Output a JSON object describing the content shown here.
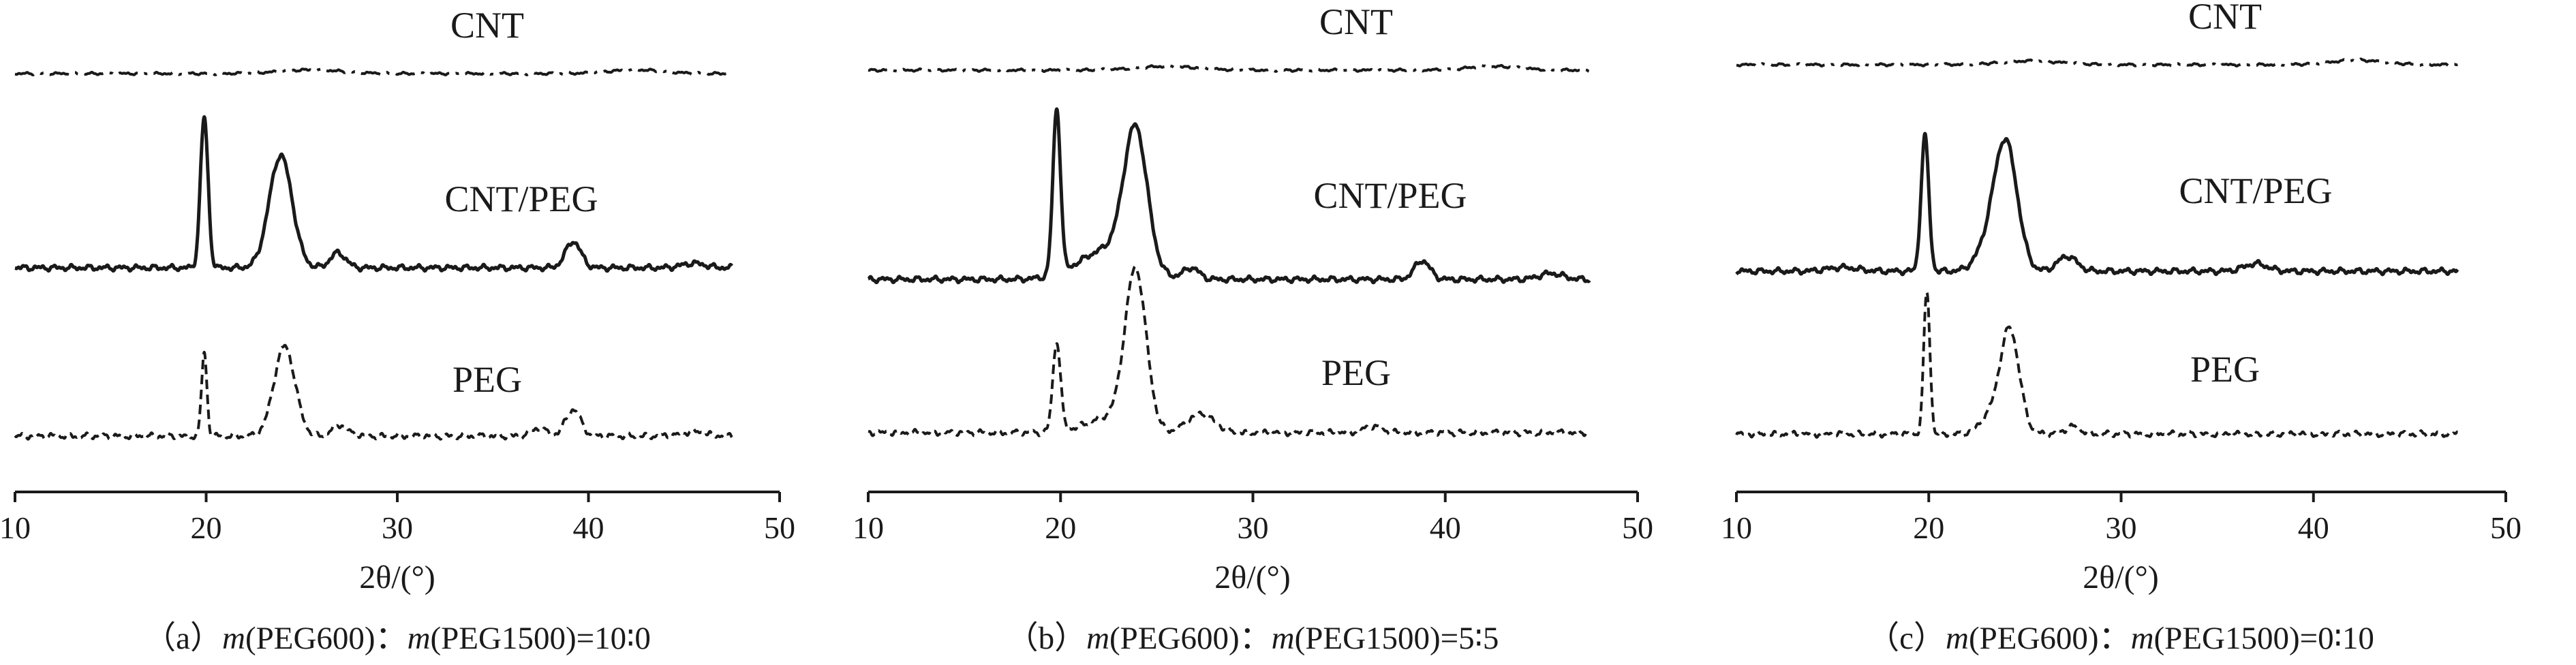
{
  "chart_data": [
    {
      "type": "line",
      "panel": "a",
      "xlabel": "2θ/(°)",
      "xlim": [
        10,
        50
      ],
      "xticks": [
        10,
        20,
        30,
        40,
        50
      ],
      "caption": {
        "prefix": "（a）",
        "m1": "m",
        "part1": "(PEG600)：",
        "m2": "m",
        "part2": "(PEG1500)=10∶0"
      },
      "series": [
        {
          "name": "CNT",
          "style": "dashdot",
          "x_range": [
            10,
            47.5
          ],
          "peaks": [
            {
              "x": 25.5,
              "h": 0.5,
              "w": 1.6
            },
            {
              "x": 42.5,
              "h": 0.5,
              "w": 1.4
            }
          ]
        },
        {
          "name": "CNT/PEG",
          "style": "solid",
          "x_range": [
            10,
            47.5
          ],
          "peaks": [
            {
              "x": 19.9,
              "h": 20,
              "w": 0.2
            },
            {
              "x": 23.9,
              "h": 15,
              "w": 0.6
            },
            {
              "x": 26.9,
              "h": 2,
              "w": 0.4
            },
            {
              "x": 39.2,
              "h": 3.5,
              "w": 0.4
            },
            {
              "x": 45.5,
              "h": 0.6,
              "w": 0.6
            }
          ]
        },
        {
          "name": "PEG",
          "style": "dashed",
          "x_range": [
            10,
            47.5
          ],
          "peaks": [
            {
              "x": 19.9,
              "h": 11,
              "w": 0.14
            },
            {
              "x": 24.1,
              "h": 12,
              "w": 0.55
            },
            {
              "x": 27.0,
              "h": 1.5,
              "w": 0.4
            },
            {
              "x": 37.4,
              "h": 1,
              "w": 0.4
            },
            {
              "x": 39.2,
              "h": 3.5,
              "w": 0.4
            },
            {
              "x": 45.5,
              "h": 0.6,
              "w": 0.6
            }
          ]
        }
      ]
    },
    {
      "type": "line",
      "panel": "b",
      "xlabel": "2θ/(°)",
      "xlim": [
        10,
        50
      ],
      "xticks": [
        10,
        20,
        30,
        40,
        50
      ],
      "caption": {
        "prefix": "（b）",
        "m1": "m",
        "part1": "(PEG600)：",
        "m2": "m",
        "part2": "(PEG1500)=5∶5"
      },
      "series": [
        {
          "name": "CNT",
          "style": "dashdot",
          "x_range": [
            10,
            47.5
          ],
          "peaks": [
            {
              "x": 25.5,
              "h": 0.5,
              "w": 1.6
            },
            {
              "x": 42.5,
              "h": 0.5,
              "w": 1.4
            }
          ]
        },
        {
          "name": "CNT/PEG",
          "style": "solid",
          "x_range": [
            10,
            47.5
          ],
          "peaks": [
            {
              "x": 19.8,
              "h": 22,
              "w": 0.2
            },
            {
              "x": 23.9,
              "h": 18,
              "w": 0.6
            },
            {
              "x": 22.5,
              "h": 4,
              "w": 1.5
            },
            {
              "x": 26.8,
              "h": 1.5,
              "w": 0.4
            },
            {
              "x": 38.8,
              "h": 2.5,
              "w": 0.4
            },
            {
              "x": 45.5,
              "h": 0.8,
              "w": 0.6
            }
          ]
        },
        {
          "name": "PEG",
          "style": "dashed",
          "x_range": [
            10,
            47.5
          ],
          "peaks": [
            {
              "x": 19.8,
              "h": 12,
              "w": 0.2
            },
            {
              "x": 23.9,
              "h": 21,
              "w": 0.55
            },
            {
              "x": 22.5,
              "h": 2,
              "w": 1.2
            },
            {
              "x": 27.3,
              "h": 2.5,
              "w": 0.7
            },
            {
              "x": 36.2,
              "h": 0.8,
              "w": 0.5
            }
          ]
        }
      ]
    },
    {
      "type": "line",
      "panel": "c",
      "xlabel": "2θ/(°)",
      "xlim": [
        10,
        50
      ],
      "xticks": [
        10,
        20,
        30,
        40,
        50
      ],
      "caption": {
        "prefix": "（c）",
        "m1": "m",
        "part1": "(PEG600)：",
        "m2": "m",
        "part2": "(PEG1500)=0∶10"
      },
      "series": [
        {
          "name": "CNT",
          "style": "dashdot",
          "x_range": [
            10,
            47.5
          ],
          "peaks": [
            {
              "x": 25.3,
              "h": 0.5,
              "w": 1.6
            },
            {
              "x": 42.3,
              "h": 0.6,
              "w": 1.4
            }
          ]
        },
        {
          "name": "CNT/PEG",
          "style": "solid",
          "x_range": [
            10,
            47.5
          ],
          "peaks": [
            {
              "x": 19.8,
              "h": 18,
              "w": 0.2
            },
            {
              "x": 24.0,
              "h": 17,
              "w": 0.6
            },
            {
              "x": 23.0,
              "h": 2.5,
              "w": 0.6
            },
            {
              "x": 27.2,
              "h": 2,
              "w": 0.5
            },
            {
              "x": 37.0,
              "h": 1,
              "w": 0.6
            },
            {
              "x": 15.5,
              "h": 0.5,
              "w": 0.8
            }
          ]
        },
        {
          "name": "PEG",
          "style": "dashed",
          "x_range": [
            10,
            47.5
          ],
          "peaks": [
            {
              "x": 19.9,
              "h": 19,
              "w": 0.16
            },
            {
              "x": 24.2,
              "h": 14,
              "w": 0.5
            },
            {
              "x": 23.1,
              "h": 2,
              "w": 0.5
            },
            {
              "x": 27.5,
              "h": 1,
              "w": 0.4
            }
          ]
        }
      ]
    }
  ]
}
